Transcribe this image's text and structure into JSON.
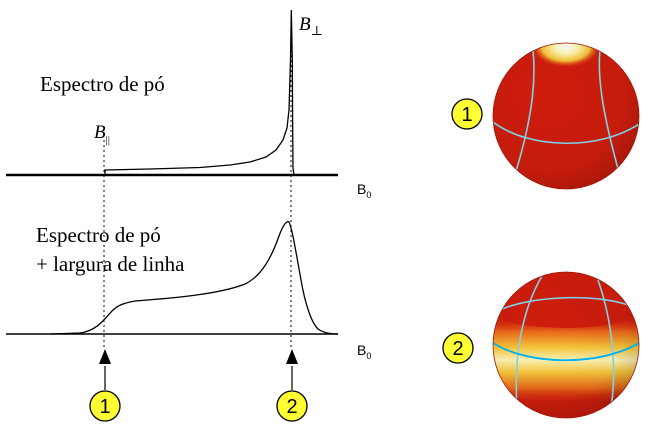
{
  "colors": {
    "sphere_base": "#cc1a0c",
    "sphere_hot": "#fff3a8",
    "badge_fill": "#ffff33",
    "grid_line": "#7fd2e6",
    "equator_line": "#00b0f0"
  },
  "top_panel": {
    "title": "Espectro de pó",
    "b_parallel_symbol": "B",
    "b_parallel_subscript": "||",
    "b_perp_symbol": "B",
    "b_perp_subscript": "⊥",
    "axis_symbol": "B",
    "axis_subscript": "0"
  },
  "bottom_panel": {
    "title_line1": "Espectro de pó",
    "title_line2": "+ largura de linha",
    "axis_symbol": "B",
    "axis_subscript": "0"
  },
  "markers": [
    {
      "label": "1"
    },
    {
      "label": "2"
    }
  ],
  "spheres": [
    {
      "label": "1",
      "highlight": "pole"
    },
    {
      "label": "2",
      "highlight": "equator"
    }
  ],
  "icons": {
    "arrow": "up-arrow-icon"
  }
}
